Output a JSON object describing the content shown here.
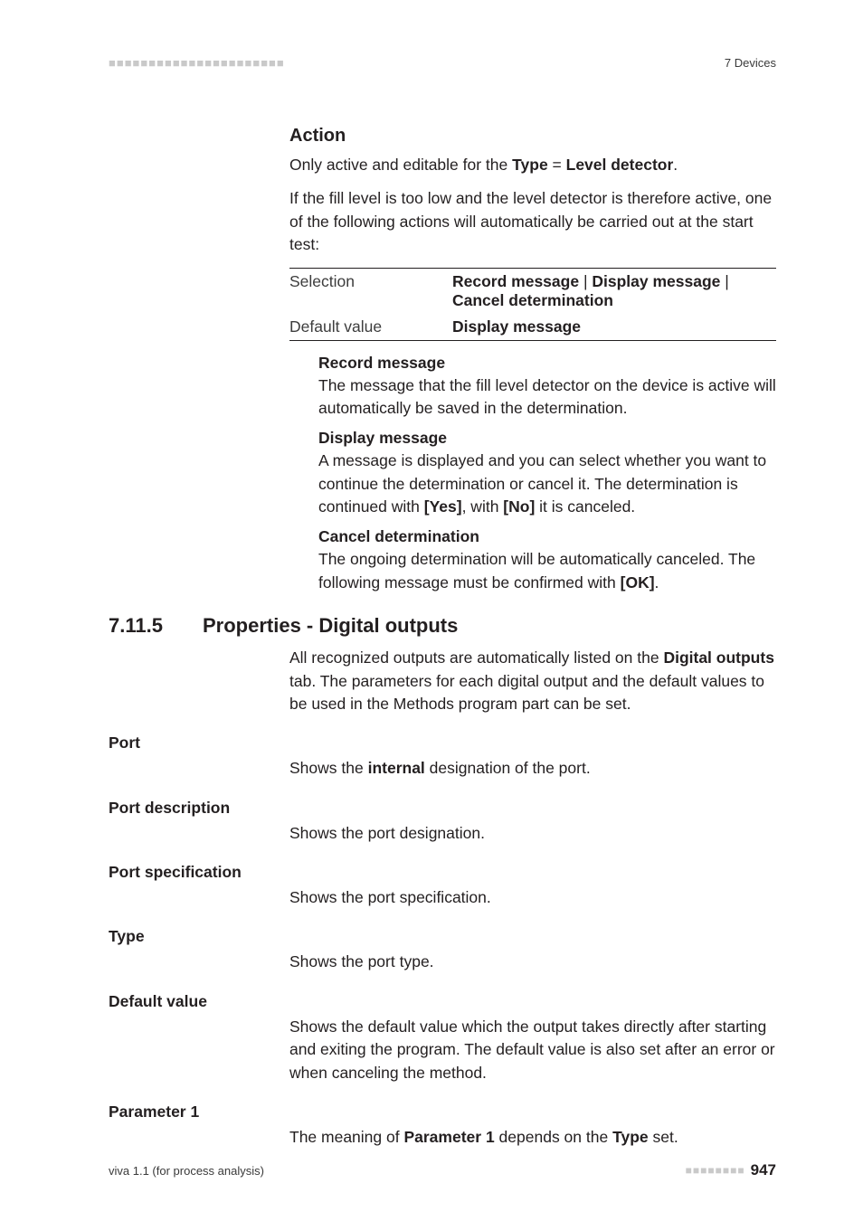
{
  "header": {
    "dashes": "■■■■■■■■■■■■■■■■■■■■■■",
    "section": "7 Devices"
  },
  "action": {
    "heading": "Action",
    "line1_pre": "Only active and editable for the ",
    "type_label": "Type",
    "equals": " = ",
    "level_detector": "Level detector",
    "line1_post": ".",
    "para2": "If the fill level is too low and the level detector is therefore active, one of the following actions will automatically be carried out at the start test:",
    "table": {
      "selection_label": "Selection",
      "selection_value_a": "Record message",
      "selection_value_b": "Display message",
      "selection_value_c": "Cancel determination",
      "sep": " | ",
      "default_label": "Default value",
      "default_value": "Display message"
    },
    "items": {
      "record": {
        "title": "Record message",
        "body": "The message that the fill level detector on the device is active will automatically be saved in the determination."
      },
      "display": {
        "title": "Display message",
        "body_pre": "A message is displayed and you can select whether you want to continue the determination or cancel it. The determination is continued with ",
        "yes": "[Yes]",
        "mid": ", with ",
        "no": "[No]",
        "post": " it is canceled."
      },
      "cancel": {
        "title": "Cancel determination",
        "body_pre": "The ongoing determination will be automatically canceled. The following message must be confirmed with ",
        "ok": "[OK]",
        "post": "."
      }
    }
  },
  "section": {
    "number": "7.11.5",
    "title": "Properties - Digital outputs",
    "intro_pre": "All recognized outputs are automatically listed on the ",
    "intro_bold": "Digital outputs",
    "intro_post": " tab. The parameters for each digital output and the default values to be used in the Methods program part can be set."
  },
  "fields": {
    "port": {
      "label": "Port",
      "body_pre": "Shows the ",
      "body_bold": "internal",
      "body_post": " designation of the port."
    },
    "port_description": {
      "label": "Port description",
      "body": "Shows the port designation."
    },
    "port_specification": {
      "label": "Port specification",
      "body": "Shows the port specification."
    },
    "type": {
      "label": "Type",
      "body": "Shows the port type."
    },
    "default_value": {
      "label": "Default value",
      "body": "Shows the default value which the output takes directly after starting and exiting the program. The default value is also set after an error or when canceling the method."
    },
    "parameter1": {
      "label": "Parameter 1",
      "body_pre": "The meaning of ",
      "body_bold1": "Parameter 1",
      "body_mid": " depends on the ",
      "body_bold2": "Type",
      "body_post": " set."
    }
  },
  "footer": {
    "left": "viva 1.1 (for process analysis)",
    "dashes": "■■■■■■■■",
    "page": "947"
  }
}
